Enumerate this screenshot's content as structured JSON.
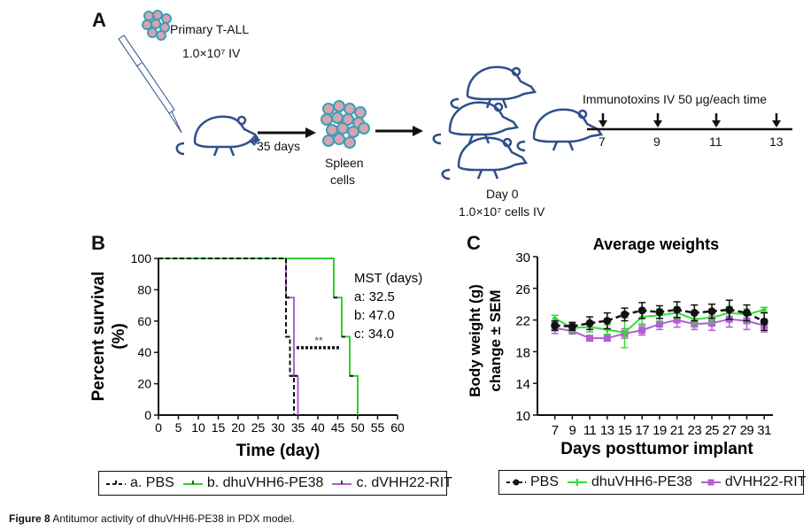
{
  "panel_a": {
    "letter": "A",
    "primary_label": "Primary T-ALL",
    "primary_dose": "1.0×10⁷ IV",
    "interval_label": "35 days",
    "spleen_label_1": "Spleen",
    "spleen_label_2": "cells",
    "day0_label": "Day 0",
    "day0_dose": "1.0×10⁷ cells IV",
    "treatment_label": "Immunotoxins IV 50 μg/each time",
    "treatment_days": [
      "7",
      "9",
      "11",
      "13"
    ]
  },
  "chart_data": [
    {
      "id": "B",
      "type": "line",
      "subtype": "kaplan-meier",
      "panel_letter": "B",
      "title": "",
      "xlabel": "Time (day)",
      "ylabel": "Percent survival (%)",
      "xlim": [
        0,
        60
      ],
      "ylim": [
        0,
        100
      ],
      "xticks": [
        0,
        5,
        10,
        15,
        20,
        25,
        30,
        35,
        40,
        45,
        50,
        55,
        60
      ],
      "yticks": [
        0,
        20,
        40,
        60,
        80,
        100
      ],
      "grid": false,
      "series": [
        {
          "name": "a. PBS",
          "color": "#111111",
          "dash": true,
          "steps": [
            [
              0,
              100
            ],
            [
              32,
              100
            ],
            [
              32,
              50
            ],
            [
              33,
              50
            ],
            [
              33,
              25
            ],
            [
              34,
              25
            ],
            [
              34,
              0
            ]
          ]
        },
        {
          "name": "b. dhuVHH6-PE38",
          "color": "#33cc33",
          "dash": false,
          "steps": [
            [
              0,
              100
            ],
            [
              44,
              100
            ],
            [
              44,
              75
            ],
            [
              46,
              75
            ],
            [
              46,
              50
            ],
            [
              48,
              50
            ],
            [
              48,
              25
            ],
            [
              50,
              25
            ],
            [
              50,
              0
            ]
          ]
        },
        {
          "name": "c. dVHH22-RIT",
          "color": "#b05fd0",
          "dash": false,
          "steps": [
            [
              32,
              100
            ],
            [
              32,
              75
            ],
            [
              34,
              75
            ],
            [
              34,
              25
            ],
            [
              35,
              25
            ],
            [
              35,
              0
            ]
          ]
        }
      ],
      "annotations": {
        "mst_title": "MST (days)",
        "mst_lines": [
          "a: 32.5",
          "b: 47.0",
          "c: 34.0"
        ],
        "significance": "**",
        "significance_y": 43,
        "significance_x": [
          34,
          46
        ]
      },
      "legend": [
        "a. PBS",
        "b. dhuVHH6-PE38",
        "c. dVHH22-RIT"
      ],
      "legend_position": "bottom"
    },
    {
      "id": "C",
      "type": "line",
      "panel_letter": "C",
      "title": "Average weights",
      "xlabel": "Days posttumor implant",
      "ylabel": "Body weight (g) change ± SEM",
      "x": [
        7,
        9,
        11,
        13,
        15,
        17,
        19,
        21,
        23,
        25,
        27,
        29,
        31
      ],
      "xlim": [
        5,
        32
      ],
      "ylim": [
        10,
        30
      ],
      "yticks": [
        10,
        14,
        18,
        22,
        26,
        30
      ],
      "grid": false,
      "series": [
        {
          "name": "PBS",
          "color": "#111111",
          "marker": "circle",
          "dash": true,
          "values": [
            21.3,
            21.2,
            21.6,
            21.9,
            22.7,
            23.2,
            23.0,
            23.3,
            22.9,
            23.1,
            23.3,
            22.9,
            21.8
          ],
          "sem": [
            0.6,
            0.5,
            0.8,
            1.0,
            0.8,
            1.0,
            0.8,
            1.0,
            1.0,
            0.9,
            1.2,
            1.0,
            1.1
          ]
        },
        {
          "name": "dhuVHH6-PE38",
          "color": "#33dd33",
          "marker": "plus",
          "dash": false,
          "values": [
            22.2,
            21.0,
            21.1,
            20.8,
            20.4,
            22.4,
            22.6,
            22.9,
            22.1,
            22.3,
            22.9,
            22.7,
            23.3
          ],
          "sem": [
            0.4,
            0.5,
            0.6,
            0.6,
            1.9,
            0.9,
            0.8,
            0.7,
            0.6,
            0.7,
            0.8,
            0.7,
            0.3
          ]
        },
        {
          "name": "dVHH22-RIT",
          "color": "#b05fd0",
          "marker": "square",
          "dash": false,
          "values": [
            21.0,
            20.6,
            19.7,
            19.7,
            20.3,
            20.7,
            21.5,
            22.0,
            21.5,
            21.6,
            22.1,
            21.9,
            21.3
          ],
          "sem": [
            0.7,
            0.3,
            0.3,
            0.3,
            0.6,
            0.6,
            0.7,
            0.9,
            0.7,
            0.9,
            1.0,
            1.1,
            0.8
          ]
        }
      ],
      "legend": [
        "PBS",
        "dhuVHH6-PE38",
        "dVHH22-RIT"
      ],
      "legend_position": "bottom"
    }
  ],
  "caption": {
    "label": "Figure 8",
    "text": " Antitumor activity of dhuVHH6-PE38 in PDX model."
  }
}
